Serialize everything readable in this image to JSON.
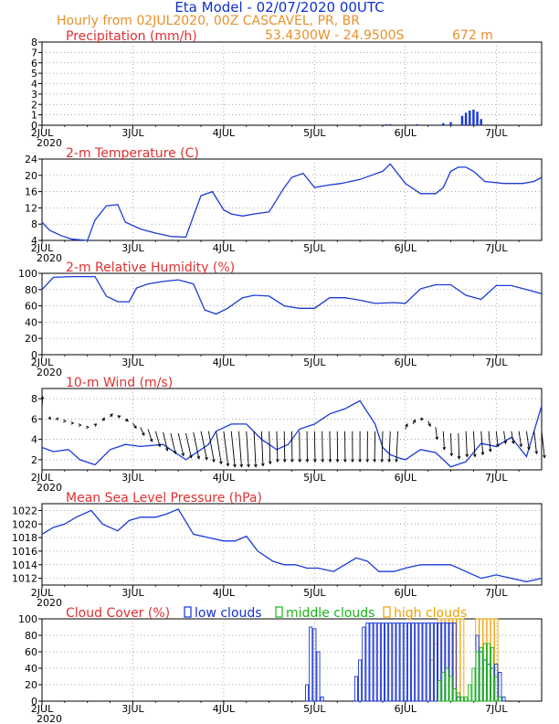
{
  "header": {
    "title": "Eta Model - 02/07/2020 00UTC",
    "subtitle": "Hourly from 02JUL2020, 00Z  CASCAVEL, PR, BR",
    "coords": "53.4300W - 24.9500S",
    "elevation": "672  m"
  },
  "colors": {
    "title_blue": "#1030d0",
    "orange": "#e8902a",
    "label_red": "#e03030",
    "line_blue": "#1a3ad8",
    "low_cloud": "#1530d8",
    "mid_cloud": "#18b418",
    "high_cloud": "#f0a000",
    "wind_arrow": "#000000"
  },
  "x_axis": {
    "ticks": [
      "2JUL",
      "3JUL",
      "4JUL",
      "5JUL",
      "6JUL",
      "7JUL"
    ],
    "year": "2020",
    "range_hours": [
      0,
      132
    ]
  },
  "chart_data": [
    {
      "type": "bar",
      "title": "Precipitation (mm/h)",
      "ylim": [
        0,
        8
      ],
      "yticks": [
        "0",
        "1",
        "2",
        "3",
        "4",
        "5",
        "6",
        "7",
        "8"
      ],
      "x": [
        91,
        92,
        99,
        106,
        108,
        111,
        112,
        113,
        114,
        115,
        116
      ],
      "values": [
        0.1,
        0.1,
        0.1,
        0.2,
        0.3,
        0.9,
        1.2,
        1.4,
        1.5,
        1.3,
        0.6
      ]
    },
    {
      "type": "line",
      "title": "2-m Temperature (C)",
      "ylim": [
        4,
        24
      ],
      "yticks": [
        "4",
        "8",
        "12",
        "16",
        "20",
        "24"
      ],
      "x": [
        0,
        2,
        5,
        8,
        12,
        14,
        17,
        20,
        22,
        26,
        30,
        34,
        38,
        40,
        42,
        45,
        48,
        50,
        53,
        56,
        60,
        64,
        66,
        69,
        72,
        75,
        79,
        84,
        87,
        90,
        92,
        96,
        100,
        104,
        106,
        108,
        110,
        112,
        114,
        117,
        122,
        127,
        130,
        132
      ],
      "values": [
        8.5,
        6.5,
        5.2,
        4.3,
        4.0,
        9.0,
        12.5,
        12.8,
        8.5,
        6.8,
        5.8,
        5.0,
        4.8,
        10.0,
        15.0,
        16.0,
        11.5,
        10.5,
        10.0,
        10.5,
        11.0,
        17.0,
        19.5,
        20.5,
        17.0,
        17.5,
        18.0,
        19.0,
        20.0,
        21.0,
        22.8,
        18.0,
        15.5,
        15.5,
        17.0,
        21.0,
        22.0,
        22.0,
        21.0,
        18.5,
        18.0,
        18.0,
        18.5,
        19.5
      ]
    },
    {
      "type": "line",
      "title": "2-m Relative Humidity (%)",
      "ylim": [
        0,
        100
      ],
      "yticks": [
        "0",
        "20",
        "40",
        "60",
        "80",
        "100"
      ],
      "x": [
        0,
        3,
        8,
        14,
        17,
        20,
        23,
        25,
        28,
        32,
        36,
        40,
        43,
        46,
        49,
        53,
        56,
        60,
        64,
        68,
        72,
        76,
        80,
        84,
        88,
        93,
        96,
        100,
        104,
        108,
        112,
        116,
        120,
        124,
        128,
        132
      ],
      "values": [
        80,
        95,
        96,
        96,
        72,
        65,
        65,
        82,
        87,
        90,
        92,
        87,
        55,
        50,
        57,
        70,
        73,
        72,
        60,
        57,
        57,
        70,
        70,
        67,
        63,
        64,
        63,
        81,
        86,
        86,
        73,
        68,
        85,
        85,
        80,
        75
      ]
    },
    {
      "type": "line",
      "title": "10-m Wind (m/s)",
      "ylim": [
        1,
        9
      ],
      "yticks": [
        "2",
        "4",
        "6",
        "8"
      ],
      "x": [
        0,
        3,
        7,
        10,
        14,
        18,
        22,
        26,
        32,
        38,
        44,
        46,
        50,
        54,
        58,
        62,
        65,
        68,
        72,
        76,
        80,
        84,
        88,
        90,
        92,
        94,
        96,
        100,
        104,
        108,
        112,
        116,
        120,
        124,
        128,
        132
      ],
      "values": [
        3.2,
        2.8,
        3.0,
        2.0,
        1.5,
        3.0,
        3.5,
        3.3,
        3.5,
        2.0,
        3.5,
        4.8,
        5.5,
        5.5,
        4.0,
        3.0,
        3.5,
        5.0,
        5.5,
        6.5,
        7.0,
        7.8,
        5.5,
        3.2,
        2.5,
        2.2,
        2.0,
        3.0,
        2.7,
        1.3,
        1.8,
        3.6,
        3.3,
        4.2,
        2.3,
        7.3
      ],
      "barb_x": [
        0,
        2,
        4,
        6,
        8,
        10,
        12,
        14,
        16,
        18,
        20,
        22,
        24,
        26,
        28,
        30,
        32,
        34,
        36,
        38,
        40,
        42,
        44,
        46,
        48,
        50,
        52,
        54,
        56,
        58,
        60,
        62,
        64,
        66,
        68,
        70,
        72,
        74,
        76,
        78,
        80,
        82,
        84,
        86,
        88,
        90,
        92,
        94,
        96,
        98,
        100,
        102,
        104,
        106,
        108,
        110,
        112,
        114,
        116,
        118,
        120,
        122,
        124,
        126,
        128,
        130,
        132
      ],
      "barb_base": [
        7.0,
        6.0,
        6.0,
        5.8,
        5.6,
        5.4,
        5.2,
        5.4,
        5.8,
        6.2,
        6.2,
        6.0,
        5.6,
        5.2,
        5.0,
        4.8,
        4.7,
        4.6,
        4.6,
        4.6,
        4.7,
        4.8,
        4.8,
        4.8,
        4.8,
        4.8,
        4.8,
        4.8,
        4.8,
        4.8,
        4.8,
        4.8,
        4.8,
        4.8,
        4.8,
        4.8,
        4.8,
        4.8,
        4.8,
        4.8,
        4.8,
        4.8,
        4.8,
        4.8,
        4.8,
        4.8,
        4.8,
        4.8,
        5.0,
        5.5,
        6.0,
        5.8,
        5.2,
        4.8,
        4.6,
        4.6,
        4.8,
        4.8,
        4.8,
        4.8,
        4.8,
        4.8,
        4.8,
        4.8,
        4.8,
        4.8,
        4.8
      ],
      "barb_u": [
        0.3,
        0.3,
        0.4,
        0.5,
        0.6,
        0.6,
        0.6,
        0.8,
        1.0,
        1.2,
        1.4,
        1.5,
        1.8,
        2.0,
        2.2,
        2.4,
        2.4,
        2.6,
        2.8,
        3.0,
        3.0,
        3.2,
        3.0,
        2.8,
        2.4,
        2.0,
        1.5,
        1.2,
        1.0,
        0.8,
        0.6,
        0.5,
        0.3,
        0.2,
        0.2,
        0.2,
        0.3,
        0.3,
        0.3,
        0.2,
        0.2,
        0.1,
        0.0,
        -0.1,
        -0.3,
        -0.4,
        -0.6,
        -0.8,
        1.0,
        1.2,
        1.4,
        1.2,
        0.8,
        0.6,
        0.4,
        0.4,
        0.6,
        0.8,
        1.0,
        1.0,
        1.0,
        1.0,
        1.2,
        1.2,
        1.4,
        1.4,
        1.6
      ],
      "barb_v": [
        1.2,
        0.2,
        0.1,
        0.0,
        0.0,
        0.0,
        0.0,
        0.1,
        0.3,
        0.3,
        0.1,
        -0.2,
        -0.5,
        -0.8,
        -1.2,
        -1.5,
        -1.8,
        -2.0,
        -2.2,
        -2.4,
        -2.6,
        -2.8,
        -3.0,
        -3.2,
        -3.4,
        -3.5,
        -3.5,
        -3.5,
        -3.5,
        -3.4,
        -3.2,
        -3.0,
        -3.0,
        -3.0,
        -3.0,
        -3.0,
        -3.0,
        -3.0,
        -3.0,
        -3.0,
        -3.0,
        -3.0,
        -3.0,
        -3.0,
        -3.0,
        -3.0,
        -3.0,
        -3.0,
        0.5,
        0.4,
        0.0,
        -0.5,
        -1.2,
        -1.8,
        -2.2,
        -2.5,
        -2.5,
        -2.5,
        -2.3,
        -2.0,
        -1.5,
        -1.2,
        -1.2,
        -1.5,
        -1.8,
        -2.2,
        -2.6
      ]
    },
    {
      "type": "line",
      "title": "Mean Sea Level Pressure (hPa)",
      "ylim": [
        1011,
        1023
      ],
      "yticks": [
        "1012",
        "1014",
        "1016",
        "1018",
        "1020",
        "1022"
      ],
      "x": [
        0,
        3,
        6,
        9,
        13,
        16,
        20,
        23,
        26,
        30,
        33,
        36,
        40,
        44,
        48,
        51,
        54,
        57,
        61,
        64,
        67,
        70,
        73,
        77,
        80,
        83,
        86,
        89,
        93,
        96,
        100,
        104,
        108,
        112,
        116,
        120,
        124,
        128,
        132
      ],
      "values": [
        1018.5,
        1019.5,
        1020.0,
        1021.0,
        1022.0,
        1020.0,
        1019.0,
        1020.5,
        1021.0,
        1021.0,
        1021.5,
        1022.2,
        1018.5,
        1018.0,
        1017.5,
        1017.5,
        1018.2,
        1016.0,
        1014.5,
        1014.0,
        1014.0,
        1013.5,
        1013.5,
        1013.0,
        1014.0,
        1015.0,
        1014.5,
        1013.0,
        1013.0,
        1013.5,
        1014.0,
        1014.0,
        1014.0,
        1013.0,
        1012.0,
        1012.5,
        1012.0,
        1011.5,
        1012.0
      ]
    },
    {
      "type": "bar",
      "title": "Cloud Cover (%)",
      "ylim": [
        0,
        100
      ],
      "yticks": [
        "0",
        "20",
        "40",
        "60",
        "80",
        "100"
      ],
      "legend": [
        "low clouds",
        "middle clouds",
        "high clouds"
      ],
      "series": [
        {
          "name": "low clouds",
          "x": [
            70,
            71,
            72,
            73,
            74,
            75,
            83,
            84,
            85,
            86,
            87,
            88,
            89,
            90,
            91,
            92,
            93,
            94,
            95,
            96,
            97,
            98,
            99,
            100,
            101,
            102,
            103,
            104,
            105,
            106,
            107,
            108,
            109,
            110,
            111,
            112,
            113,
            114,
            115,
            116,
            117,
            118,
            119,
            120,
            121,
            122,
            123,
            124
          ],
          "values": [
            20,
            90,
            88,
            60,
            5,
            0,
            30,
            50,
            90,
            95,
            95,
            95,
            95,
            95,
            95,
            95,
            95,
            95,
            95,
            95,
            95,
            95,
            95,
            95,
            95,
            95,
            95,
            95,
            95,
            95,
            95,
            95,
            95,
            5,
            0,
            0,
            0,
            0,
            80,
            60,
            50,
            45,
            40,
            45,
            35,
            5,
            0,
            0
          ]
        },
        {
          "name": "middle clouds",
          "x": [
            105,
            106,
            107,
            108,
            109,
            110,
            111,
            112,
            113,
            114,
            115,
            116,
            117,
            118,
            119,
            120,
            121
          ],
          "values": [
            25,
            35,
            40,
            30,
            15,
            10,
            5,
            5,
            20,
            40,
            60,
            65,
            70,
            70,
            65,
            30,
            5
          ]
        },
        {
          "name": "high clouds",
          "x": [
            103,
            104,
            105,
            106,
            107,
            108,
            109,
            110,
            111,
            112,
            113,
            114,
            115,
            116,
            117,
            118,
            119,
            120,
            121
          ],
          "values": [
            50,
            70,
            100,
            100,
            100,
            100,
            100,
            100,
            100,
            0,
            0,
            0,
            100,
            100,
            100,
            100,
            100,
            100,
            0
          ]
        }
      ]
    }
  ]
}
